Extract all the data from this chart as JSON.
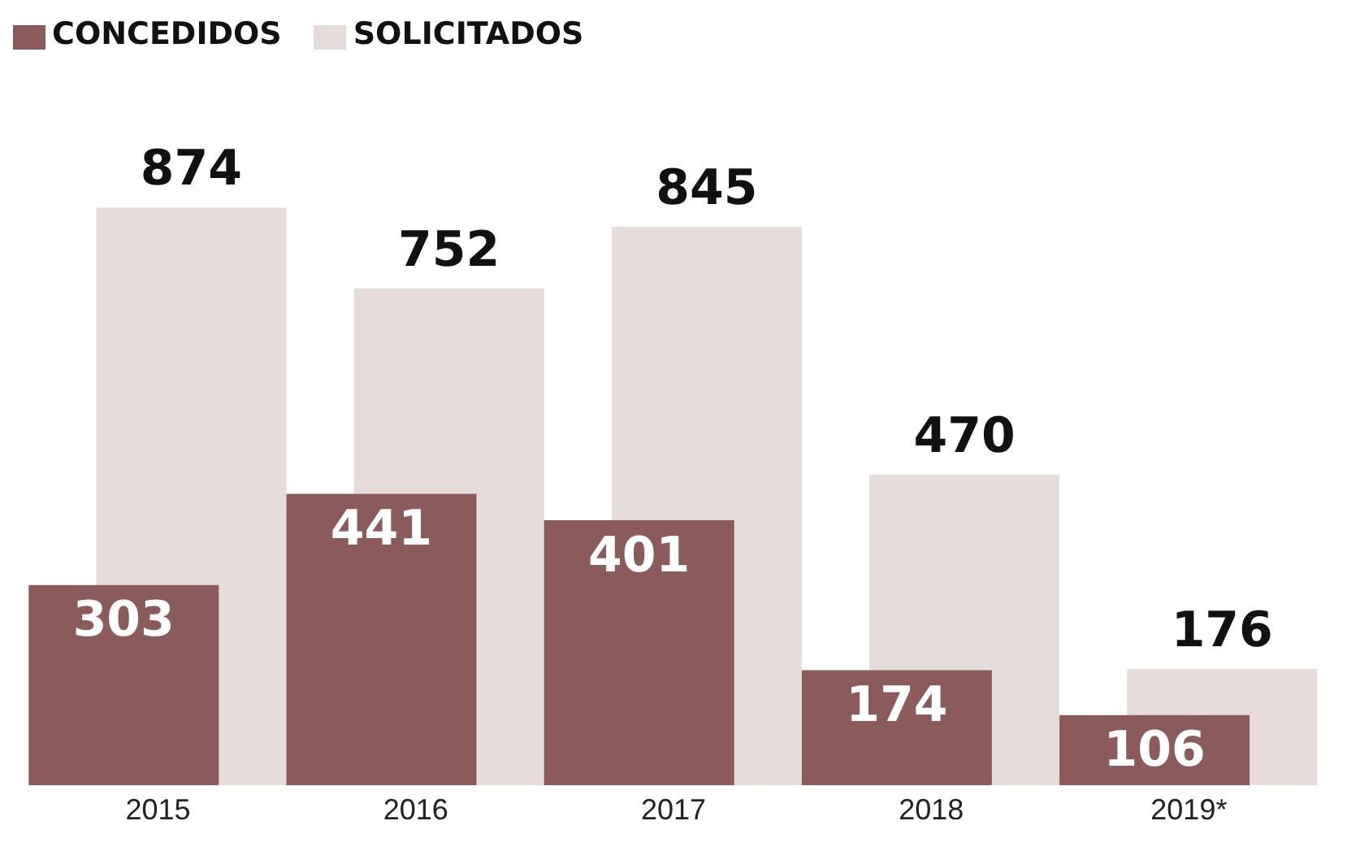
{
  "chart_data": {
    "type": "bar",
    "categories": [
      "2015",
      "2016",
      "2017",
      "2018",
      "2019*"
    ],
    "series": [
      {
        "name": "SOLICITADOS",
        "color": "#e6dcda",
        "values": [
          874,
          752,
          845,
          470,
          176
        ]
      },
      {
        "name": "CONCEDIDOS",
        "color": "#8b5b5b",
        "values": [
          303,
          441,
          401,
          174,
          106
        ]
      }
    ],
    "data_labels": true,
    "legend": "top left",
    "grid": false
  }
}
